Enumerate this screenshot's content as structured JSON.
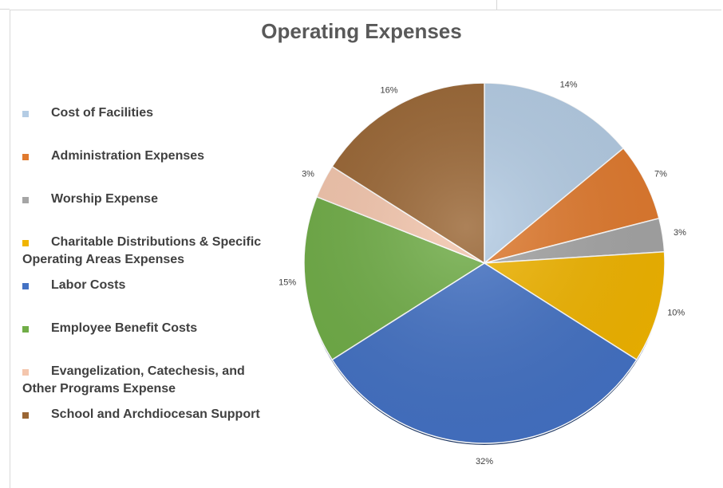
{
  "chart_data": {
    "type": "pie",
    "title": "Operating Expenses",
    "legend_position": "left",
    "categories": [
      "Cost of Facilities",
      "Administration Expenses",
      "Worship Expense",
      "Charitable Distributions & Specific Operating Areas Expenses",
      "Labor Costs",
      "Employee Benefit Costs",
      "Evangelization, Catechesis, and Other Programs Expense",
      "School and Archdiocesan Support"
    ],
    "values": [
      14,
      7,
      3,
      10,
      32,
      15,
      3,
      16
    ],
    "labels": [
      "14%",
      "7%",
      "3%",
      "10%",
      "32%",
      "15%",
      "3%",
      "16%"
    ],
    "colors": [
      "#b4cce4",
      "#e07a2e",
      "#a5a5a5",
      "#f0b400",
      "#4472c4",
      "#70ad47",
      "#f4c6ad",
      "#9a6634"
    ]
  }
}
